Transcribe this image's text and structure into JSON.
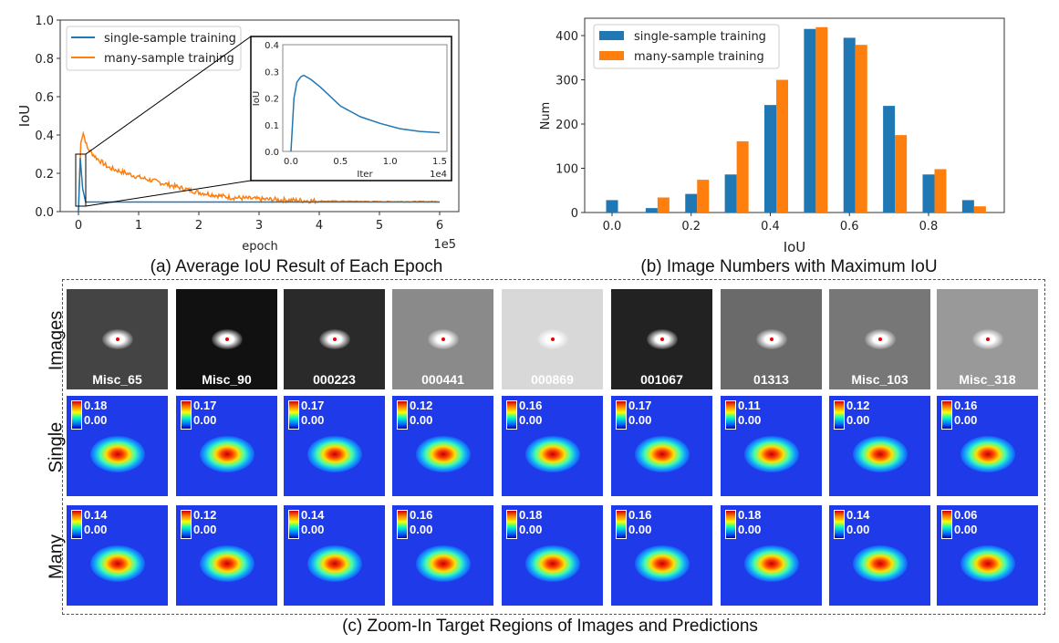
{
  "captions": {
    "a": "(a) Average IoU Result of Each Epoch",
    "b": "(b) Image Numbers with Maximum IoU",
    "c": "(c) Zoom-In Target Regions of Images and Predictions"
  },
  "colors": {
    "single": "#1f77b4",
    "many": "#ff7f0e"
  },
  "chart_data": [
    {
      "type": "line",
      "xlabel": "epoch",
      "ylabel": "IoU",
      "x_scale_label": "1e5",
      "xlim": [
        -0.3,
        6.3
      ],
      "ylim": [
        0,
        1.0
      ],
      "xticks": [
        "0",
        "1",
        "2",
        "3",
        "4",
        "5",
        "6"
      ],
      "yticks": [
        "0.0",
        "0.2",
        "0.4",
        "0.6",
        "0.8",
        "1.0"
      ],
      "legend": "top-left",
      "series": [
        {
          "name": "single-sample training",
          "points": [
            [
              0,
              0
            ],
            [
              0.03,
              0.28
            ],
            [
              0.07,
              0.12
            ],
            [
              0.12,
              0.05
            ],
            [
              1,
              0.05
            ],
            [
              6,
              0.05
            ]
          ]
        },
        {
          "name": "many-sample training",
          "points": [
            [
              0,
              0
            ],
            [
              0.04,
              0.37
            ],
            [
              0.08,
              0.41
            ],
            [
              0.15,
              0.33
            ],
            [
              0.3,
              0.28
            ],
            [
              0.5,
              0.23
            ],
            [
              0.7,
              0.21
            ],
            [
              1,
              0.18
            ],
            [
              1.5,
              0.14
            ],
            [
              2,
              0.1
            ],
            [
              2.5,
              0.075
            ],
            [
              3,
              0.065
            ],
            [
              3.5,
              0.06
            ],
            [
              4,
              0.055
            ],
            [
              5,
              0.052
            ],
            [
              6,
              0.052
            ]
          ]
        }
      ],
      "inset": {
        "xlabel": "Iter",
        "ylabel": "IoU",
        "x_scale_label": "1e4",
        "xlim": [
          -0.08,
          1.58
        ],
        "ylim": [
          0,
          0.4
        ],
        "xticks": [
          "0.0",
          "0.5",
          "1.0",
          "1.5"
        ],
        "yticks": [
          "0.0",
          "0.1",
          "0.2",
          "0.3",
          "0.4"
        ],
        "points": [
          [
            0,
            0
          ],
          [
            0.03,
            0.2
          ],
          [
            0.06,
            0.26
          ],
          [
            0.1,
            0.28
          ],
          [
            0.13,
            0.285
          ],
          [
            0.2,
            0.27
          ],
          [
            0.3,
            0.24
          ],
          [
            0.5,
            0.17
          ],
          [
            0.7,
            0.13
          ],
          [
            0.9,
            0.105
          ],
          [
            1.1,
            0.085
          ],
          [
            1.3,
            0.075
          ],
          [
            1.5,
            0.07
          ]
        ]
      }
    },
    {
      "type": "bar",
      "xlabel": "IoU",
      "ylabel": "Num",
      "ylim": [
        0,
        440
      ],
      "legend": "top-left",
      "xticks": [
        "0.0",
        "0.2",
        "0.4",
        "0.6",
        "0.8"
      ],
      "yticks": [
        "0",
        "100",
        "200",
        "300",
        "400"
      ],
      "categories": [
        0.0,
        0.1,
        0.2,
        0.3,
        0.4,
        0.5,
        0.6,
        0.7,
        0.8,
        0.9
      ],
      "series": [
        {
          "name": "single-sample training",
          "values": [
            28,
            10,
            42,
            86,
            243,
            415,
            395,
            241,
            86,
            28
          ]
        },
        {
          "name": "many-sample training",
          "values": [
            0,
            34,
            74,
            161,
            300,
            419,
            379,
            175,
            98,
            14
          ]
        }
      ]
    }
  ],
  "panel_c": {
    "row_labels": [
      "Images",
      "Single",
      "Many"
    ],
    "names": [
      "Misc_65",
      "Misc_90",
      "000223",
      "000441",
      "000869",
      "001067",
      "01313",
      "Misc_103",
      "Misc_318"
    ],
    "single_max": [
      "0.18",
      "0.17",
      "0.17",
      "0.12",
      "0.16",
      "0.17",
      "0.11",
      "0.12",
      "0.16"
    ],
    "many_max": [
      "0.14",
      "0.12",
      "0.14",
      "0.16",
      "0.18",
      "0.16",
      "0.18",
      "0.14",
      "0.06"
    ],
    "min": "0.00"
  }
}
